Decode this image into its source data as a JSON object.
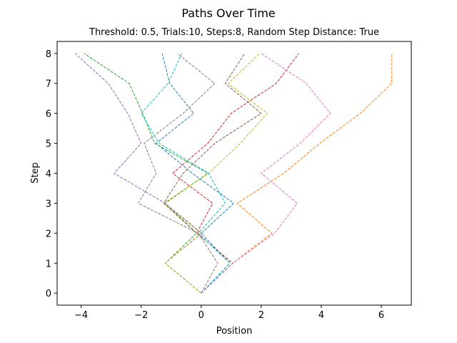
{
  "chart_data": {
    "type": "line",
    "title": "Paths Over Time",
    "subtitle": "Threshold: 0.5, Trials:10, Steps:8, Random Step Distance: True",
    "xlabel": "Position",
    "ylabel": "Step",
    "xlim": [
      -4.8,
      7.0
    ],
    "ylim": [
      -0.4,
      8.4
    ],
    "xticks": [
      -4,
      -2,
      0,
      2,
      4,
      6
    ],
    "yticks": [
      0,
      1,
      2,
      3,
      4,
      5,
      6,
      7,
      8
    ],
    "line_style": "dashed",
    "grid": false,
    "legend": "none",
    "series": [
      {
        "color": "#1f77b4",
        "x": [
          0,
          0.95,
          0,
          1.08,
          -0.3,
          -1.5,
          -0.25,
          -1.05,
          -1.3
        ],
        "y": [
          0,
          1,
          2,
          3,
          4,
          5,
          6,
          7,
          8
        ]
      },
      {
        "color": "#ff7f0e",
        "x": [
          0,
          1.05,
          2.35,
          1.2,
          2.75,
          3.95,
          5.3,
          6.35,
          6.35
        ],
        "y": [
          0,
          1,
          2,
          3,
          4,
          5,
          6,
          7,
          8
        ]
      },
      {
        "color": "#2ca02c",
        "x": [
          0,
          -1.2,
          -0.15,
          -1.2,
          0.22,
          -1.55,
          -1.95,
          -2.4,
          -3.9
        ],
        "y": [
          0,
          1,
          2,
          3,
          4,
          5,
          6,
          7,
          8
        ]
      },
      {
        "color": "#d62728",
        "x": [
          0,
          1.05,
          -0.15,
          0.38,
          -0.95,
          0.22,
          1.0,
          2.5,
          3.25
        ],
        "y": [
          0,
          1,
          2,
          3,
          4,
          5,
          6,
          7,
          8
        ]
      },
      {
        "color": "#9467bd",
        "x": [
          0,
          -1.2,
          0.02,
          -1.2,
          -2.9,
          -2.0,
          -2.45,
          -3.1,
          -4.2
        ],
        "y": [
          0,
          1,
          2,
          3,
          4,
          5,
          6,
          7,
          8
        ]
      },
      {
        "color": "#8c564b",
        "x": [
          0,
          1.05,
          -0.15,
          -1.25,
          -0.6,
          0.45,
          2.0,
          0.8,
          1.45
        ],
        "y": [
          0,
          1,
          2,
          3,
          4,
          5,
          6,
          7,
          8
        ]
      },
      {
        "color": "#e377c2",
        "x": [
          0,
          1.05,
          2.45,
          3.2,
          2.0,
          3.3,
          4.3,
          3.5,
          2.0
        ],
        "y": [
          0,
          1,
          2,
          3,
          4,
          5,
          6,
          7,
          8
        ]
      },
      {
        "color": "#7f7f7f",
        "x": [
          0,
          0.55,
          -0.1,
          -2.1,
          -1.5,
          -1.9,
          -0.6,
          0.45,
          -0.8
        ],
        "y": [
          0,
          1,
          2,
          3,
          4,
          5,
          6,
          7,
          8
        ]
      },
      {
        "color": "#bcbd22",
        "x": [
          0,
          -1.2,
          0.0,
          -1.25,
          0.25,
          1.3,
          2.2,
          0.9,
          1.95
        ],
        "y": [
          0,
          1,
          2,
          3,
          4,
          5,
          6,
          7,
          8
        ]
      },
      {
        "color": "#17becf",
        "x": [
          0,
          0.95,
          -0.1,
          0.8,
          0.25,
          -1.4,
          -2.0,
          -1.1,
          -0.65
        ],
        "y": [
          0,
          1,
          2,
          3,
          4,
          5,
          6,
          7,
          8
        ]
      }
    ]
  }
}
